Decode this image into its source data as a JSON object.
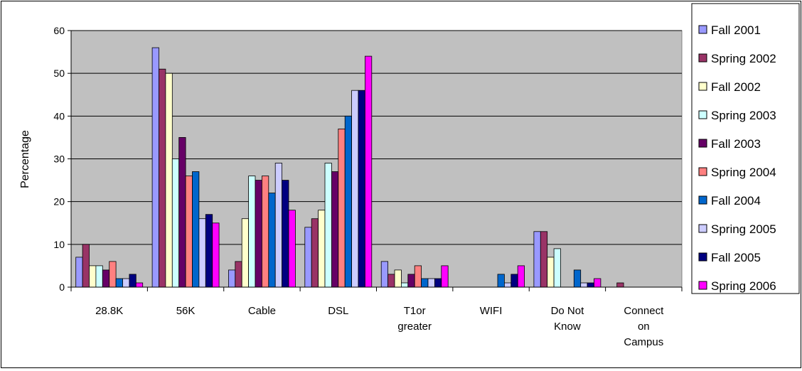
{
  "chart_data": {
    "type": "bar",
    "title": "",
    "xlabel": "",
    "ylabel": "Percentage",
    "ylim": [
      0,
      60
    ],
    "yticks": [
      0,
      10,
      20,
      30,
      40,
      50,
      60
    ],
    "grid": "horizontal",
    "legend": "right",
    "plot_background": "#c0c0c0",
    "categories": [
      [
        "28.8K"
      ],
      [
        "56K"
      ],
      [
        "Cable"
      ],
      [
        "DSL"
      ],
      [
        "T1or",
        "greater"
      ],
      [
        "WIFI"
      ],
      [
        "Do Not",
        "Know"
      ],
      [
        "Connect",
        "on",
        "Campus"
      ]
    ],
    "series": [
      {
        "name": "Fall 2001",
        "color": "#9999ff",
        "values": [
          7,
          56,
          4,
          14,
          6,
          0,
          13,
          0
        ]
      },
      {
        "name": "Spring 2002",
        "color": "#993366",
        "values": [
          10,
          51,
          6,
          16,
          3,
          0,
          13,
          1
        ]
      },
      {
        "name": "Fall 2002",
        "color": "#ffffcc",
        "values": [
          5,
          50,
          16,
          18,
          4,
          0,
          7,
          0
        ]
      },
      {
        "name": "Spring 2003",
        "color": "#ccffff",
        "values": [
          5,
          30,
          26,
          29,
          1,
          0,
          9,
          0
        ]
      },
      {
        "name": "Fall 2003",
        "color": "#660066",
        "values": [
          4,
          35,
          25,
          27,
          3,
          0,
          0,
          0
        ]
      },
      {
        "name": "Spring 2004",
        "color": "#ff8080",
        "values": [
          6,
          26,
          26,
          37,
          5,
          0,
          0,
          0
        ]
      },
      {
        "name": "Fall 2004",
        "color": "#0066cc",
        "values": [
          2,
          27,
          22,
          40,
          2,
          3,
          4,
          0
        ]
      },
      {
        "name": "Spring 2005",
        "color": "#ccccff",
        "values": [
          2,
          16,
          29,
          46,
          2,
          1,
          1,
          0
        ]
      },
      {
        "name": "Fall 2005",
        "color": "#000080",
        "values": [
          3,
          17,
          25,
          46,
          2,
          3,
          1,
          0
        ]
      },
      {
        "name": "Spring 2006",
        "color": "#ff00ff",
        "values": [
          1,
          15,
          18,
          54,
          5,
          5,
          2,
          0
        ]
      }
    ]
  }
}
